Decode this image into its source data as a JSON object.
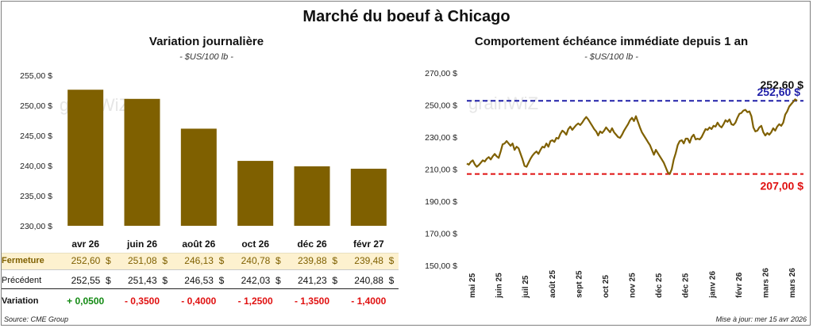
{
  "main_title": "Marché du boeuf à Chicago",
  "left": {
    "title": "Variation journalière",
    "unit": "- $US/100 lb -"
  },
  "right": {
    "title": "Comportement  échéance immédiate depuis 1 an",
    "unit": "- $US/100 lb -"
  },
  "table": {
    "row_labels": [
      "Fermeture",
      "Précédent",
      "Variation"
    ],
    "fermeture": [
      "252,60  $",
      "251,08  $",
      "246,13  $",
      "240,78  $",
      "239,88  $",
      "239,48  $"
    ],
    "precedent": [
      "252,55  $",
      "251,43  $",
      "246,53  $",
      "242,03  $",
      "241,23  $",
      "240,88  $"
    ],
    "variation": [
      "+ 0,0500",
      "- 0,3500",
      "- 0,4000",
      "- 1,2500",
      "- 1,3500",
      "- 1,4000"
    ]
  },
  "footer": {
    "source": "Source: CME Group",
    "updated": "Mise à jour: mer 15 avr 2026"
  },
  "watermark": "grainWiZ",
  "colors": {
    "bar": "#7f6000",
    "line": "#7f6000",
    "high": "#1f1fa8",
    "low": "#e01010",
    "fermeture_bg": "#fdf1cf",
    "positive": "#138a13",
    "negative": "#e01010"
  },
  "chart_data": [
    {
      "type": "bar",
      "title": "Variation journalière",
      "categories": [
        "avr 26",
        "juin 26",
        "août 26",
        "oct 26",
        "déc 26",
        "févr 27"
      ],
      "values": [
        252.6,
        251.08,
        246.13,
        240.78,
        239.88,
        239.48
      ],
      "ylim": [
        230,
        255
      ],
      "yticks": [
        "230,00 $",
        "235,00 $",
        "240,00 $",
        "245,00 $",
        "250,00 $",
        "255,00 $"
      ],
      "grid": false
    },
    {
      "type": "line",
      "title": "Comportement  échéance immédiate depuis 1 an",
      "ylim": [
        150,
        270
      ],
      "yticks": [
        "150,00 $",
        "170,00 $",
        "190,00 $",
        "210,00 $",
        "230,00 $",
        "250,00 $",
        "270,00 $"
      ],
      "xticks": [
        "mai 25",
        "juin 25",
        "juil 25",
        "août 25",
        "sept 25",
        "oct 25",
        "nov 25",
        "déc 25",
        "déc 25",
        "janv 26",
        "févr 26",
        "mars 26",
        "mars 26"
      ],
      "high": {
        "value": 252.6,
        "label": "252,60 $"
      },
      "low": {
        "value": 207.0,
        "label": "207,00 $"
      },
      "series": [
        {
          "values": [
            213.5,
            212.8,
            214.5,
            215.5,
            213.0,
            211.5,
            212.5,
            214.0,
            215.5,
            214.8,
            216.5,
            217.5,
            216.0,
            218.0,
            219.5,
            218.0,
            217.0,
            221.0,
            225.5,
            226.0,
            227.5,
            226.0,
            224.5,
            226.0,
            222.0,
            224.0,
            223.0,
            219.5,
            216.0,
            212.0,
            211.5,
            214.0,
            216.5,
            218.5,
            220.0,
            221.0,
            219.5,
            222.0,
            224.0,
            223.5,
            226.0,
            224.0,
            227.5,
            228.0,
            227.0,
            229.5,
            229.0,
            232.0,
            234.0,
            233.0,
            231.5,
            235.0,
            236.5,
            234.5,
            236.0,
            237.5,
            238.5,
            237.5,
            239.0,
            241.0,
            242.5,
            241.0,
            239.0,
            237.0,
            235.0,
            233.5,
            231.0,
            233.5,
            232.5,
            234.0,
            236.0,
            234.5,
            233.0,
            235.5,
            233.0,
            231.5,
            230.0,
            229.5,
            231.5,
            234.0,
            236.0,
            238.0,
            240.5,
            242.0,
            240.0,
            243.0,
            239.5,
            236.0,
            233.0,
            231.0,
            229.0,
            227.0,
            225.0,
            222.0,
            219.0,
            222.0,
            220.0,
            218.0,
            216.0,
            214.0,
            211.0,
            208.0,
            207.0,
            210.0,
            216.0,
            220.0,
            225.0,
            227.5,
            228.0,
            226.0,
            229.0,
            229.0,
            226.5,
            230.0,
            231.5,
            228.5,
            229.0,
            228.5,
            230.0,
            232.5,
            235.0,
            234.5,
            236.0,
            235.0,
            237.0,
            236.5,
            239.0,
            237.0,
            236.0,
            238.0,
            240.5,
            239.5,
            241.0,
            238.0,
            237.5,
            239.0,
            242.0,
            244.5,
            245.0,
            246.5,
            247.0,
            245.5,
            246.0,
            243.0,
            236.0,
            233.5,
            234.0,
            236.0,
            237.0,
            233.0,
            231.0,
            232.5,
            231.5,
            233.0,
            235.5,
            234.0,
            236.5,
            238.0,
            237.0,
            239.0,
            244.0,
            246.0,
            249.0,
            250.5,
            252.0,
            253.5,
            252.6
          ]
        }
      ]
    }
  ]
}
